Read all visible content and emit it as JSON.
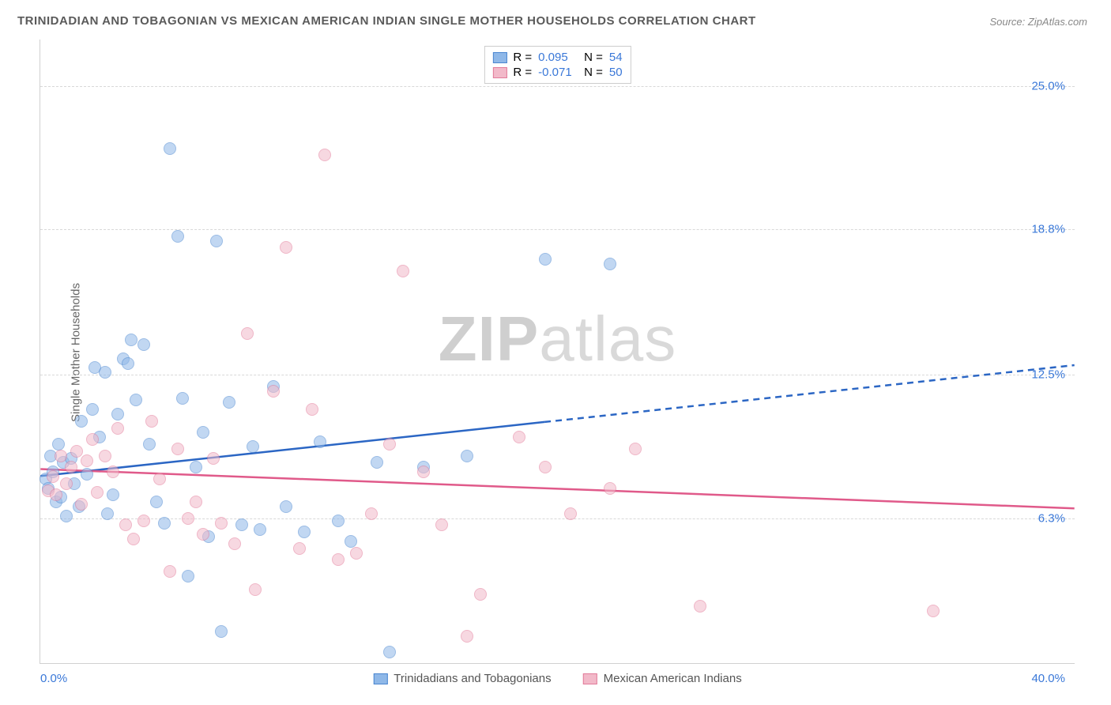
{
  "title": "TRINIDADIAN AND TOBAGONIAN VS MEXICAN AMERICAN INDIAN SINGLE MOTHER HOUSEHOLDS CORRELATION CHART",
  "source_label": "Source: ZipAtlas.com",
  "y_axis_label": "Single Mother Households",
  "watermark_part1": "ZIP",
  "watermark_part2": "atlas",
  "chart": {
    "type": "scatter",
    "background_color": "#ffffff",
    "grid_color": "#d8d8d8",
    "axis_color": "#d0d0d0",
    "xlim": [
      0,
      40
    ],
    "ylim": [
      0,
      27
    ],
    "x_ticks": [
      {
        "value": 0,
        "label": "0.0%",
        "color": "#3a78d8"
      },
      {
        "value": 40,
        "label": "40.0%",
        "color": "#3a78d8"
      }
    ],
    "y_ticks": [
      {
        "value": 6.3,
        "label": "6.3%",
        "color": "#3a78d8"
      },
      {
        "value": 12.5,
        "label": "12.5%",
        "color": "#3a78d8"
      },
      {
        "value": 18.8,
        "label": "18.8%",
        "color": "#3a78d8"
      },
      {
        "value": 25.0,
        "label": "25.0%",
        "color": "#3a78d8"
      }
    ],
    "point_radius": 8,
    "point_opacity": 0.55,
    "series": [
      {
        "name": "Trinidadians and Tobagonians",
        "fill_color": "#8fb8e8",
        "stroke_color": "#4a86d0",
        "r_value": "0.095",
        "n_value": "54",
        "trend": {
          "y_start": 8.1,
          "y_end": 12.9,
          "solid_until_x": 19.5,
          "color": "#2b66c4",
          "width": 2.5
        },
        "points": [
          [
            0.2,
            8.0
          ],
          [
            0.3,
            7.6
          ],
          [
            0.4,
            9.0
          ],
          [
            0.5,
            8.3
          ],
          [
            0.6,
            7.0
          ],
          [
            0.7,
            9.5
          ],
          [
            0.8,
            7.2
          ],
          [
            0.9,
            8.7
          ],
          [
            1.0,
            6.4
          ],
          [
            1.2,
            8.9
          ],
          [
            1.3,
            7.8
          ],
          [
            1.5,
            6.8
          ],
          [
            1.6,
            10.5
          ],
          [
            1.8,
            8.2
          ],
          [
            2.0,
            11.0
          ],
          [
            2.1,
            12.8
          ],
          [
            2.3,
            9.8
          ],
          [
            2.5,
            12.6
          ],
          [
            2.6,
            6.5
          ],
          [
            2.8,
            7.3
          ],
          [
            3.0,
            10.8
          ],
          [
            3.2,
            13.2
          ],
          [
            3.4,
            13.0
          ],
          [
            3.5,
            14.0
          ],
          [
            3.7,
            11.4
          ],
          [
            4.0,
            13.8
          ],
          [
            4.2,
            9.5
          ],
          [
            4.5,
            7.0
          ],
          [
            4.8,
            6.1
          ],
          [
            5.0,
            22.3
          ],
          [
            5.3,
            18.5
          ],
          [
            5.5,
            11.5
          ],
          [
            5.7,
            3.8
          ],
          [
            6.0,
            8.5
          ],
          [
            6.3,
            10.0
          ],
          [
            6.5,
            5.5
          ],
          [
            6.8,
            18.3
          ],
          [
            7.0,
            1.4
          ],
          [
            7.3,
            11.3
          ],
          [
            7.8,
            6.0
          ],
          [
            8.2,
            9.4
          ],
          [
            8.5,
            5.8
          ],
          [
            9.0,
            12.0
          ],
          [
            9.5,
            6.8
          ],
          [
            10.2,
            5.7
          ],
          [
            10.8,
            9.6
          ],
          [
            11.5,
            6.2
          ],
          [
            12.0,
            5.3
          ],
          [
            13.0,
            8.7
          ],
          [
            13.5,
            0.5
          ],
          [
            14.8,
            8.5
          ],
          [
            19.5,
            17.5
          ],
          [
            22.0,
            17.3
          ],
          [
            16.5,
            9.0
          ]
        ]
      },
      {
        "name": "Mexican American Indians",
        "fill_color": "#f2b9c9",
        "stroke_color": "#e27b9a",
        "r_value": "-0.071",
        "n_value": "50",
        "trend": {
          "y_start": 8.4,
          "y_end": 6.7,
          "solid_until_x": 40,
          "color": "#e05a8a",
          "width": 2.5
        },
        "points": [
          [
            0.3,
            7.5
          ],
          [
            0.5,
            8.1
          ],
          [
            0.6,
            7.3
          ],
          [
            0.8,
            9.0
          ],
          [
            1.0,
            7.8
          ],
          [
            1.2,
            8.5
          ],
          [
            1.4,
            9.2
          ],
          [
            1.6,
            6.9
          ],
          [
            1.8,
            8.8
          ],
          [
            2.0,
            9.7
          ],
          [
            2.2,
            7.4
          ],
          [
            2.5,
            9.0
          ],
          [
            2.8,
            8.3
          ],
          [
            3.0,
            10.2
          ],
          [
            3.3,
            6.0
          ],
          [
            3.6,
            5.4
          ],
          [
            4.0,
            6.2
          ],
          [
            4.3,
            10.5
          ],
          [
            4.6,
            8.0
          ],
          [
            5.0,
            4.0
          ],
          [
            5.3,
            9.3
          ],
          [
            5.7,
            6.3
          ],
          [
            6.0,
            7.0
          ],
          [
            6.3,
            5.6
          ],
          [
            6.7,
            8.9
          ],
          [
            7.0,
            6.1
          ],
          [
            7.5,
            5.2
          ],
          [
            8.0,
            14.3
          ],
          [
            8.3,
            3.2
          ],
          [
            9.0,
            11.8
          ],
          [
            9.5,
            18.0
          ],
          [
            10.0,
            5.0
          ],
          [
            10.5,
            11.0
          ],
          [
            11.0,
            22.0
          ],
          [
            11.5,
            4.5
          ],
          [
            12.2,
            4.8
          ],
          [
            12.8,
            6.5
          ],
          [
            13.5,
            9.5
          ],
          [
            14.0,
            17.0
          ],
          [
            14.8,
            8.3
          ],
          [
            15.5,
            6.0
          ],
          [
            16.5,
            1.2
          ],
          [
            17.0,
            3.0
          ],
          [
            18.5,
            9.8
          ],
          [
            19.5,
            8.5
          ],
          [
            22.0,
            7.6
          ],
          [
            23.0,
            9.3
          ],
          [
            25.5,
            2.5
          ],
          [
            34.5,
            2.3
          ],
          [
            20.5,
            6.5
          ]
        ]
      }
    ],
    "legend_top": {
      "r_label": "R =",
      "n_label": "N ="
    }
  }
}
